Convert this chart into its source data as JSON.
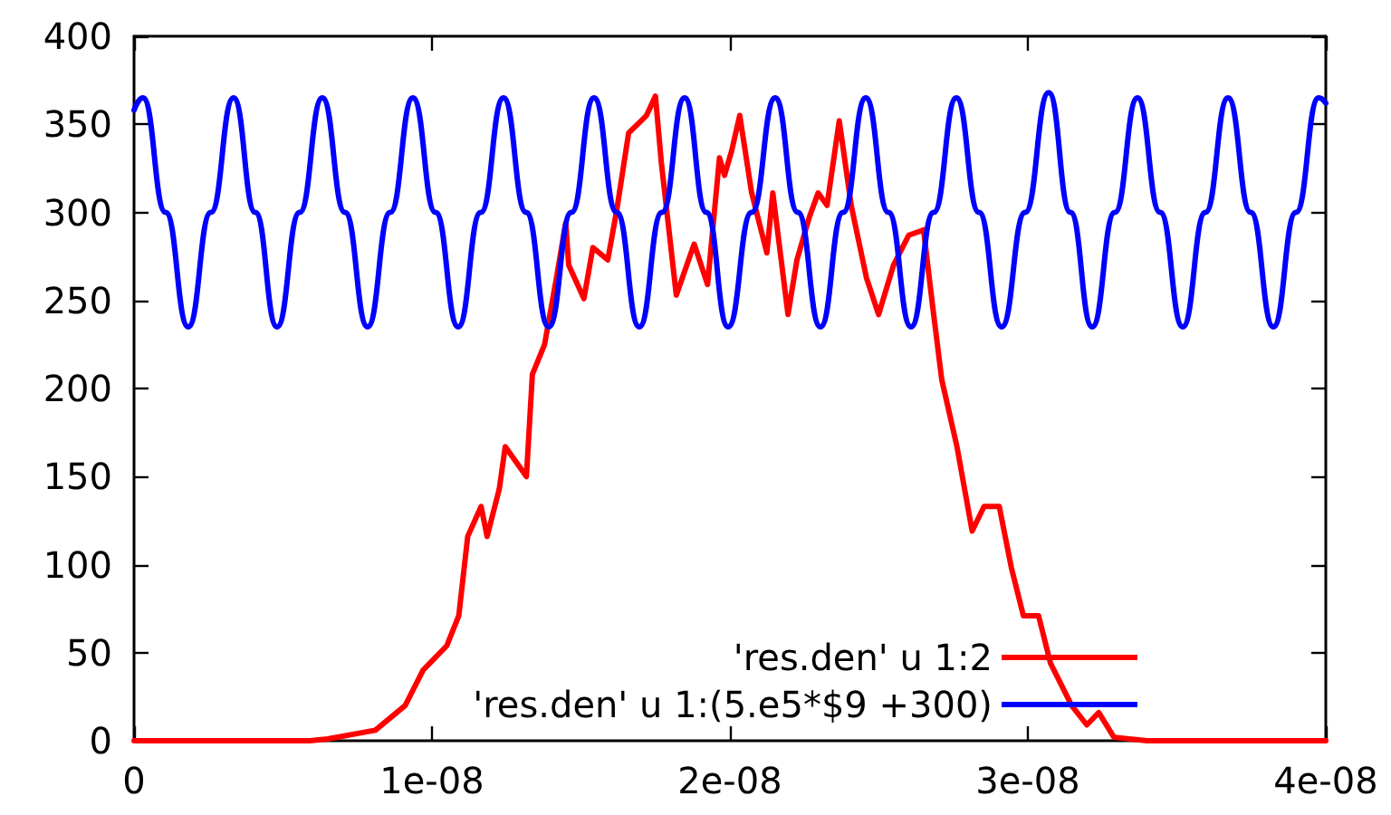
{
  "chart_data": {
    "type": "line",
    "xlim": [
      0,
      4e-08
    ],
    "ylim": [
      0,
      400
    ],
    "xticks": [
      {
        "value": 0,
        "label": "0"
      },
      {
        "value": 1e-08,
        "label": "1e-08"
      },
      {
        "value": 2e-08,
        "label": "2e-08"
      },
      {
        "value": 3e-08,
        "label": "3e-08"
      },
      {
        "value": 4e-08,
        "label": "4e-08"
      }
    ],
    "yticks": [
      0,
      50,
      100,
      150,
      200,
      250,
      300,
      350,
      400
    ],
    "grid": false,
    "legend": "bottom right",
    "marker": "none",
    "line_style": "solid",
    "series": [
      {
        "name": "'res.den' u 1:2",
        "color": "#ff0000",
        "x": [
          0,
          5.9e-09,
          6.5e-09,
          8.1e-09,
          9.1e-09,
          9.7e-09,
          1.05e-08,
          1.09e-08,
          1.12e-08,
          1.165e-08,
          1.185e-08,
          1.226e-08,
          1.246e-08,
          1.317e-08,
          1.337e-08,
          1.378e-08,
          1.418e-08,
          1.449e-08,
          1.459e-08,
          1.51e-08,
          1.54e-08,
          1.59e-08,
          1.62e-08,
          1.66e-08,
          1.72e-08,
          1.75e-08,
          1.77e-08,
          1.82e-08,
          1.88e-08,
          1.925e-08,
          1.965e-08,
          1.982e-08,
          2.006e-08,
          2.033e-08,
          2.073e-08,
          2.124e-08,
          2.144e-08,
          2.195e-08,
          2.225e-08,
          2.266e-08,
          2.296e-08,
          2.326e-08,
          2.367e-08,
          2.407e-08,
          2.458e-08,
          2.499e-08,
          2.549e-08,
          2.6e-08,
          2.65e-08,
          2.681e-08,
          2.711e-08,
          2.762e-08,
          2.813e-08,
          2.853e-08,
          2.904e-08,
          2.945e-08,
          2.985e-08,
          3.036e-08,
          3.076e-08,
          3.147e-08,
          3.198e-08,
          3.238e-08,
          3.289e-08,
          3.4e-08,
          4e-08
        ],
        "values": [
          0,
          0,
          1,
          6,
          20,
          40,
          54,
          71,
          116,
          133,
          116,
          143,
          167,
          150,
          208,
          225,
          263,
          294,
          270,
          251,
          280,
          273,
          301,
          345,
          355,
          366,
          328,
          253,
          282,
          259,
          331,
          321,
          335,
          355,
          311,
          277,
          311,
          242,
          273,
          297,
          311,
          304,
          352,
          304,
          263,
          242,
          270,
          287,
          290,
          246,
          205,
          167,
          119,
          133,
          133,
          98,
          71,
          71,
          44,
          20,
          9,
          16,
          2,
          0,
          0
        ]
      },
      {
        "name": "'res.den' u 1:(5.e5*$9 +300)",
        "color": "#0000ff",
        "x": [
          0,
          3e-10,
          1.06e-09,
          1.82e-09,
          2.58e-09,
          3.34e-09,
          4.07e-09,
          4.8e-09,
          5.56e-09,
          6.32e-09,
          7.08e-09,
          7.84e-09,
          8.6e-09,
          9.36e-09,
          1.012e-08,
          1.088e-08,
          1.164e-08,
          1.24e-08,
          1.316e-08,
          1.392e-08,
          1.468e-08,
          1.544e-08,
          1.62e-08,
          1.696e-08,
          1.772e-08,
          1.848e-08,
          1.921e-08,
          1.994e-08,
          2.073e-08,
          2.152e-08,
          2.228e-08,
          2.304e-08,
          2.38e-08,
          2.456e-08,
          2.532e-08,
          2.608e-08,
          2.684e-08,
          2.76e-08,
          2.836e-08,
          2.912e-08,
          2.991e-08,
          3.07e-08,
          3.143e-08,
          3.216e-08,
          3.292e-08,
          3.368e-08,
          3.444e-08,
          3.52e-08,
          3.596e-08,
          3.672e-08,
          3.748e-08,
          3.824e-08,
          3.9e-08,
          3.976e-08,
          4e-08
        ],
        "values": [
          358,
          365,
          300,
          235,
          300,
          365,
          300,
          235,
          300,
          365,
          300,
          235,
          300,
          365,
          300,
          235,
          300,
          365,
          300,
          235,
          300,
          365,
          300,
          235,
          300,
          365,
          300,
          235,
          300,
          365,
          300,
          235,
          300,
          365,
          300,
          235,
          300,
          365,
          300,
          235,
          300,
          368,
          300,
          235,
          300,
          365,
          300,
          235,
          300,
          365,
          300,
          235,
          300,
          365,
          362
        ]
      }
    ]
  }
}
